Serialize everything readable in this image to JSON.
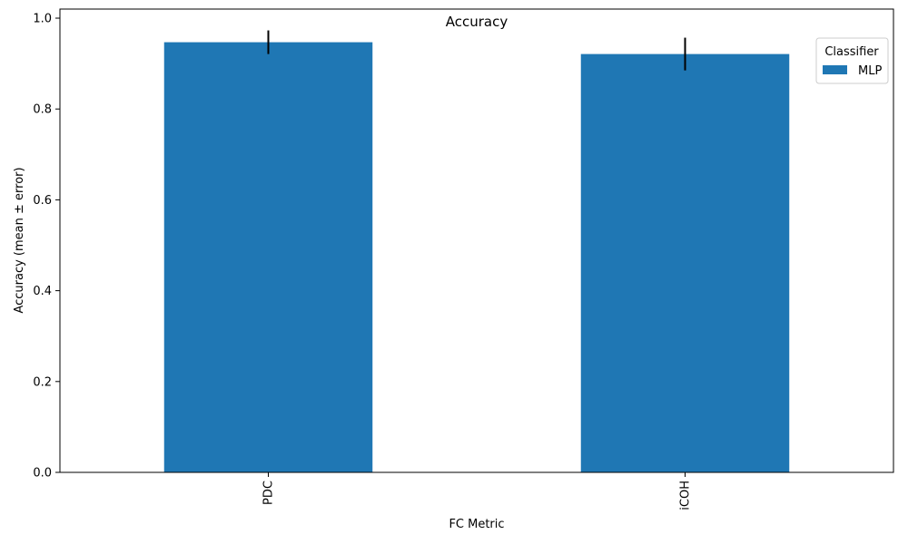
{
  "chart_data": {
    "type": "bar",
    "title": "Accuracy",
    "xlabel": "FC Metric",
    "ylabel": "Accuracy (mean ± error)",
    "categories": [
      "PDC",
      "iCOH"
    ],
    "series": [
      {
        "name": "MLP",
        "values": [
          0.947,
          0.921
        ],
        "errors": [
          0.026,
          0.036
        ]
      }
    ],
    "ylim": [
      0,
      1.02
    ],
    "yticks": [
      0.0,
      0.2,
      0.4,
      0.6,
      0.8,
      1.0
    ],
    "ytick_labels": [
      "0.0",
      "0.2",
      "0.4",
      "0.6",
      "0.8",
      "1.0"
    ],
    "grid": false,
    "legend": {
      "title": "Classifier",
      "placement": "top-right"
    },
    "colors": {
      "bar": "#1f77b4",
      "errorbar": "#000000"
    }
  }
}
